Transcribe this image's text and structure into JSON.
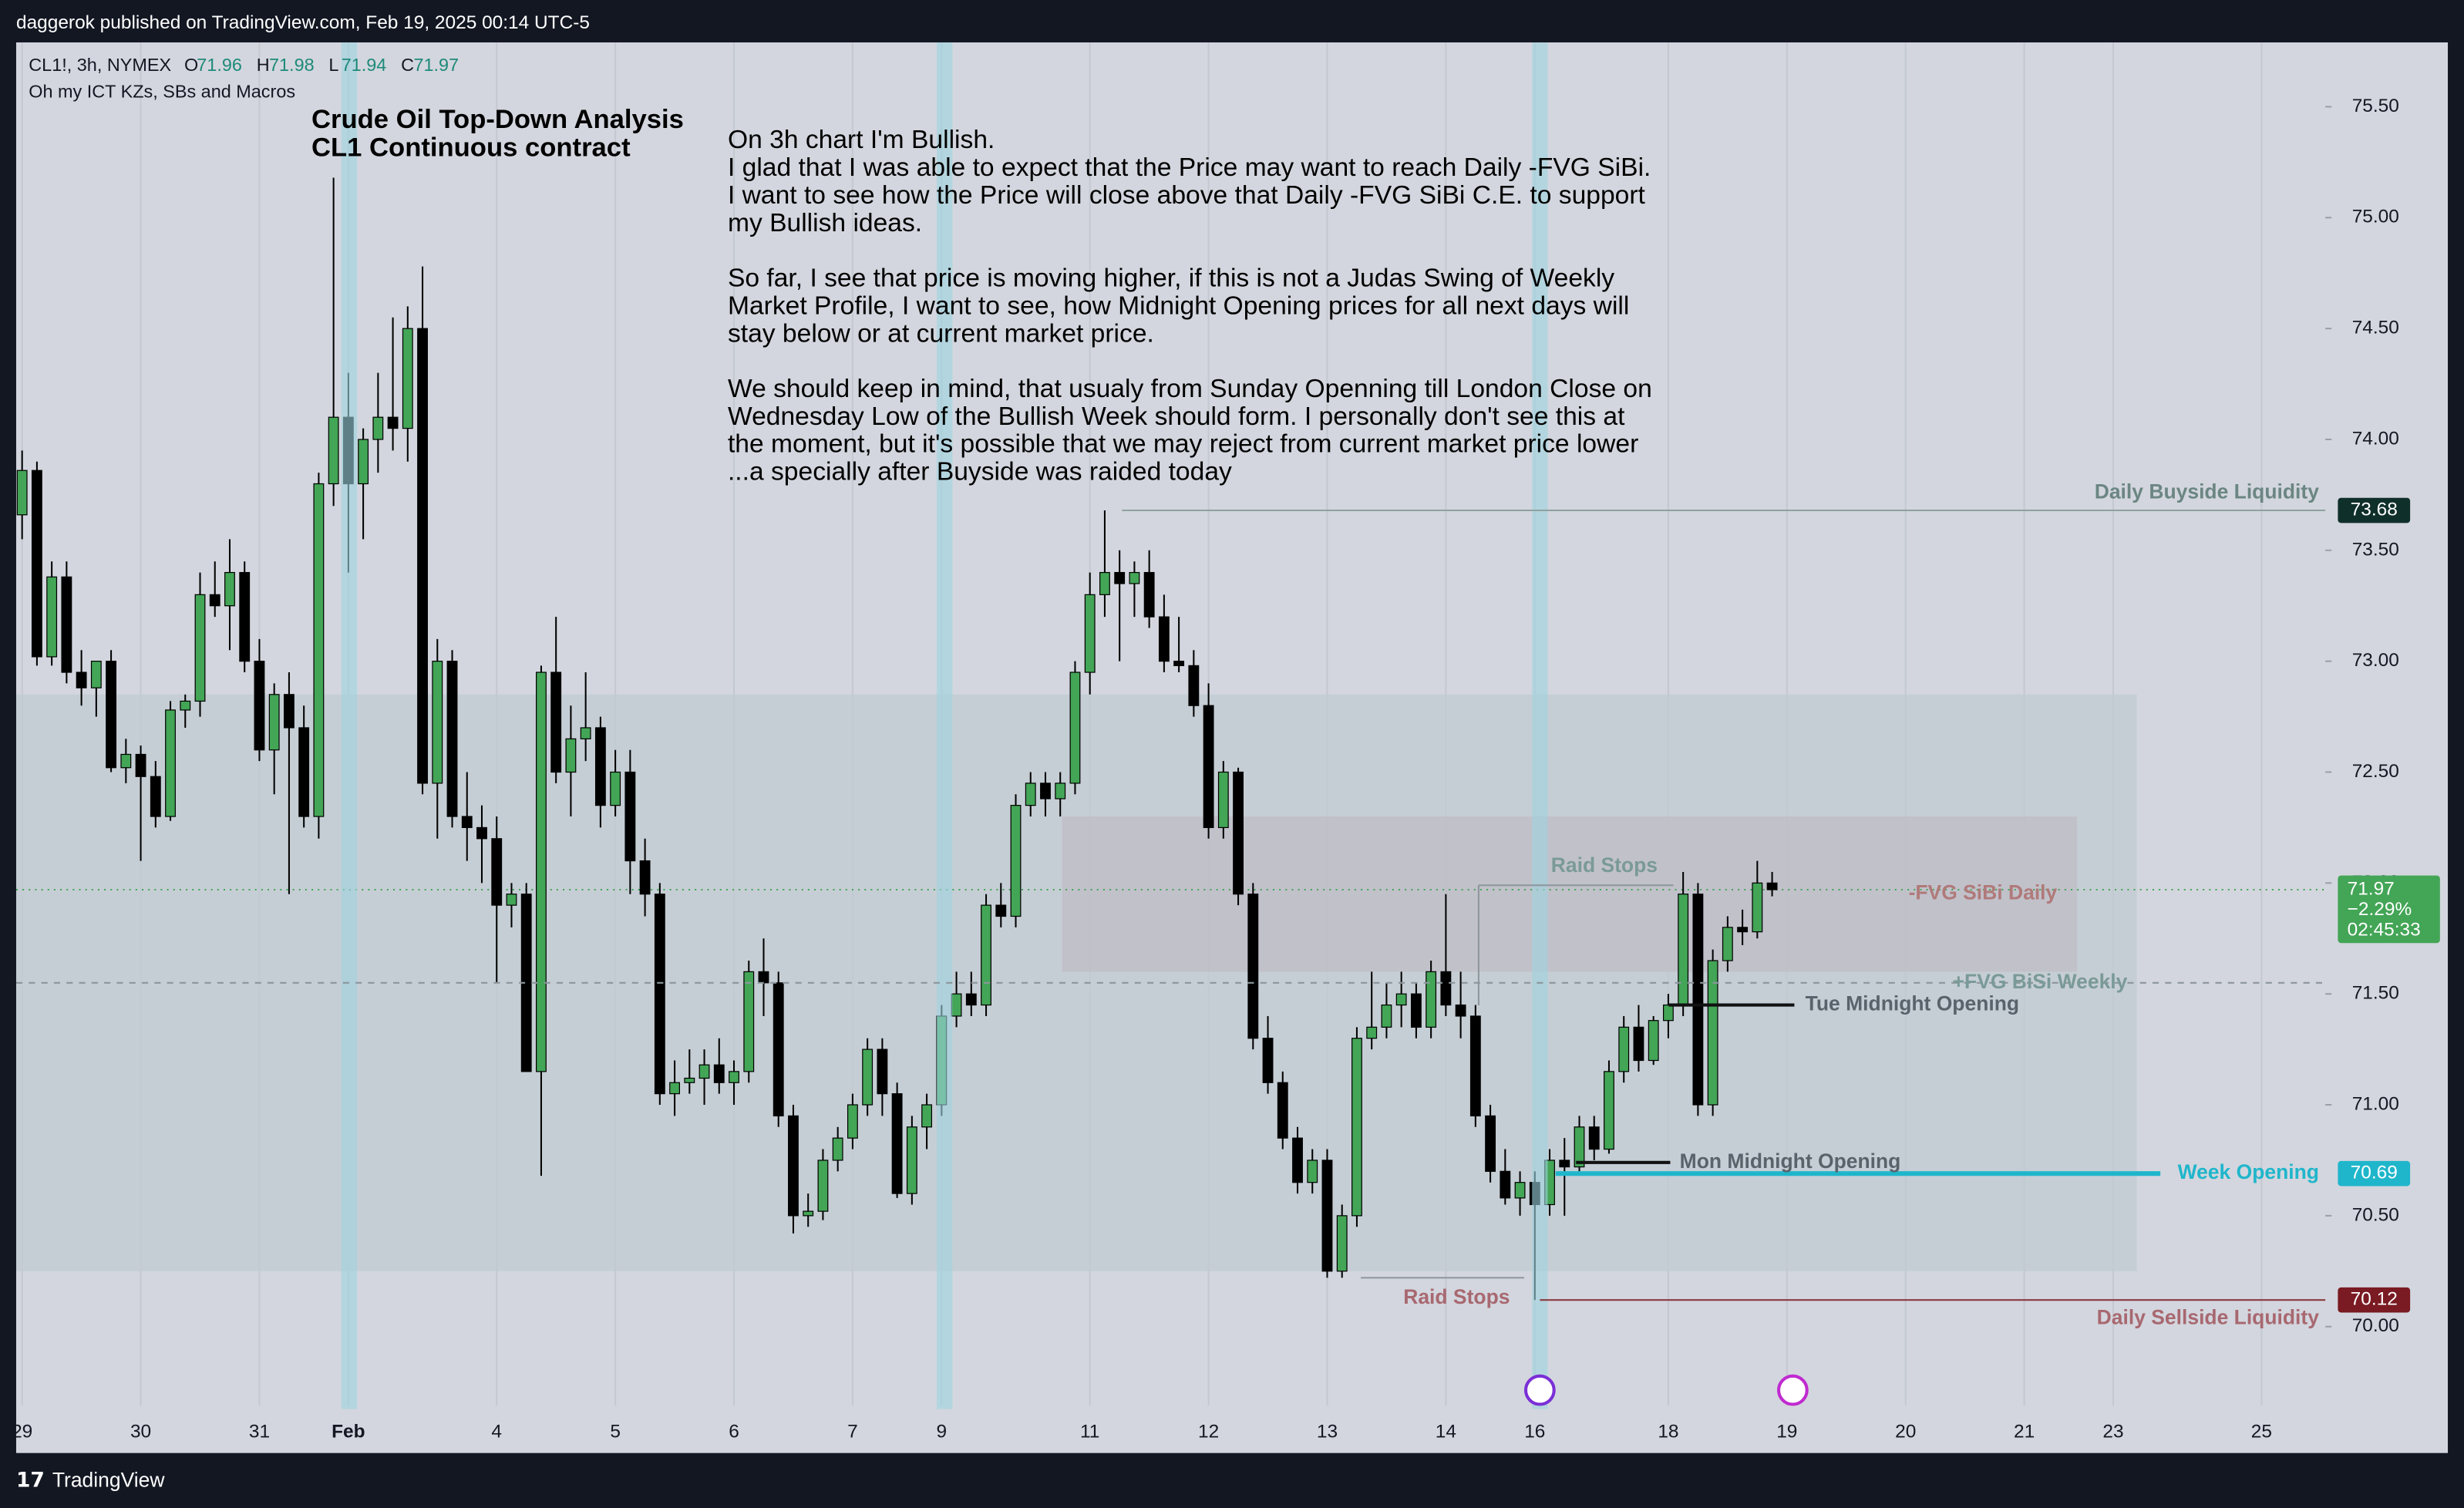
{
  "chart_data": {
    "type": "candlestick",
    "publisher": "daggerok published on TradingView.com, Feb 19, 2025 00:14 UTC-5",
    "symbol": "CL1!, 3h, NYMEX",
    "legend_labels": [
      "O",
      "H",
      "L",
      "C"
    ],
    "legend_values": [
      71.96,
      71.98,
      71.94,
      71.97
    ],
    "indicator": "Oh my ICT KZs, SBs and Macros",
    "title": [
      "Crude Oil Top-Down Analysis",
      "CL1 Continuous contract"
    ],
    "notes": [
      [
        "On 3h chart I'm Bullish.",
        "I glad that I was able to expect that the Price may want to reach Daily -FVG SiBi.",
        "I want to see how the Price will close above that Daily -FVG SiBi C.E. to support",
        "my Bullish ideas."
      ],
      [
        "So far, I see that price is moving higher, if this is not a Judas Swing of Weekly",
        "Market Profile, I want to see, how Midnight Opening prices for all next days will",
        "stay below or at current market price."
      ],
      [
        "We should keep in mind, that usualy from Sunday Openning till London Close on",
        "Wednesday Low of the Bullish Week should form. I personally don't see this at",
        "the moment, but it's possible that we may reject from current market price lower",
        "...a specially after Buyside was raided today"
      ]
    ],
    "footer": "TradingView",
    "up_color": "#43a556",
    "down_color": "#000000",
    "xlim": [
      -0.4,
      155.3
    ],
    "ylim": [
      69.43,
      75.79
    ],
    "xticks": [
      {
        "value": 0,
        "label": "29"
      },
      {
        "value": 8,
        "label": "30"
      },
      {
        "value": 16,
        "label": "31"
      },
      {
        "value": 22,
        "label": "Feb"
      },
      {
        "value": 32,
        "label": "4"
      },
      {
        "value": 40,
        "label": "5"
      },
      {
        "value": 48,
        "label": "6"
      },
      {
        "value": 56,
        "label": "7"
      },
      {
        "value": 62,
        "label": "9"
      },
      {
        "value": 72,
        "label": "11"
      },
      {
        "value": 80,
        "label": "12"
      },
      {
        "value": 88,
        "label": "13"
      },
      {
        "value": 96,
        "label": "14"
      },
      {
        "value": 102,
        "label": "16"
      },
      {
        "value": 111,
        "label": "18"
      },
      {
        "value": 119,
        "label": "19"
      },
      {
        "value": 127,
        "label": "20"
      },
      {
        "value": 135,
        "label": "21"
      },
      {
        "value": 141,
        "label": "23"
      },
      {
        "value": 151,
        "label": "25"
      }
    ],
    "yticks": [
      {
        "value": 70,
        "label": "70.00"
      },
      {
        "value": 70.5,
        "label": "70.50"
      },
      {
        "value": 71,
        "label": "71.00"
      },
      {
        "value": 71.5,
        "label": "71.50"
      },
      {
        "value": 72,
        "label": "72.00"
      },
      {
        "value": 72.5,
        "label": "72.50"
      },
      {
        "value": 73,
        "label": "73.00"
      },
      {
        "value": 73.5,
        "label": "73.50"
      },
      {
        "value": 74,
        "label": "74.00"
      },
      {
        "value": 74.5,
        "label": "74.50"
      },
      {
        "value": 75,
        "label": "75.00"
      },
      {
        "value": 75.5,
        "label": "75.50"
      }
    ],
    "ohlc": [
      [
        73.66,
        73.95,
        73.55,
        73.86
      ],
      [
        73.86,
        73.9,
        72.98,
        73.02
      ],
      [
        73.02,
        73.45,
        72.98,
        73.38
      ],
      [
        73.38,
        73.45,
        72.9,
        72.95
      ],
      [
        72.95,
        73.05,
        72.8,
        72.88
      ],
      [
        72.88,
        73.0,
        72.75,
        73.0
      ],
      [
        73.0,
        73.05,
        72.5,
        72.52
      ],
      [
        72.52,
        72.65,
        72.45,
        72.58
      ],
      [
        72.58,
        72.62,
        72.1,
        72.48
      ],
      [
        72.48,
        72.55,
        72.25,
        72.3
      ],
      [
        72.3,
        72.82,
        72.28,
        72.78
      ],
      [
        72.78,
        72.85,
        72.7,
        72.82
      ],
      [
        72.82,
        73.4,
        72.75,
        73.3
      ],
      [
        73.3,
        73.45,
        73.2,
        73.25
      ],
      [
        73.25,
        73.55,
        73.05,
        73.4
      ],
      [
        73.4,
        73.45,
        72.95,
        73.0
      ],
      [
        73.0,
        73.1,
        72.55,
        72.6
      ],
      [
        72.6,
        72.9,
        72.4,
        72.85
      ],
      [
        72.85,
        72.95,
        71.95,
        72.7
      ],
      [
        72.7,
        72.8,
        72.25,
        72.3
      ],
      [
        72.3,
        73.85,
        72.2,
        73.8
      ],
      [
        73.8,
        75.18,
        73.7,
        74.1
      ],
      [
        74.1,
        74.3,
        73.4,
        73.8
      ],
      [
        73.8,
        74.05,
        73.55,
        74.0
      ],
      [
        74.0,
        74.3,
        73.85,
        74.1
      ],
      [
        74.1,
        74.55,
        73.95,
        74.05
      ],
      [
        74.05,
        74.6,
        73.9,
        74.5
      ],
      [
        74.5,
        74.78,
        72.4,
        72.45
      ],
      [
        72.45,
        73.1,
        72.2,
        73.0
      ],
      [
        73.0,
        73.05,
        72.25,
        72.3
      ],
      [
        72.3,
        72.5,
        72.1,
        72.25
      ],
      [
        72.25,
        72.35,
        72.0,
        72.2
      ],
      [
        72.2,
        72.3,
        71.55,
        71.9
      ],
      [
        71.9,
        72.0,
        71.8,
        71.95
      ],
      [
        71.95,
        72.0,
        71.15,
        71.15
      ],
      [
        71.15,
        72.98,
        70.68,
        72.95
      ],
      [
        72.95,
        73.2,
        72.45,
        72.5
      ],
      [
        72.5,
        72.8,
        72.3,
        72.65
      ],
      [
        72.65,
        72.95,
        72.55,
        72.7
      ],
      [
        72.7,
        72.75,
        72.25,
        72.35
      ],
      [
        72.35,
        72.6,
        72.3,
        72.5
      ],
      [
        72.5,
        72.6,
        71.95,
        72.1
      ],
      [
        72.1,
        72.2,
        71.85,
        71.95
      ],
      [
        71.95,
        72.0,
        71.0,
        71.05
      ],
      [
        71.05,
        71.2,
        70.95,
        71.1
      ],
      [
        71.1,
        71.25,
        71.05,
        71.12
      ],
      [
        71.12,
        71.25,
        71.0,
        71.18
      ],
      [
        71.18,
        71.3,
        71.05,
        71.1
      ],
      [
        71.1,
        71.2,
        71.0,
        71.15
      ],
      [
        71.15,
        71.65,
        71.1,
        71.6
      ],
      [
        71.6,
        71.75,
        71.4,
        71.55
      ],
      [
        71.55,
        71.6,
        70.9,
        70.95
      ],
      [
        70.95,
        71.0,
        70.42,
        70.5
      ],
      [
        70.5,
        70.6,
        70.45,
        70.52
      ],
      [
        70.52,
        70.8,
        70.48,
        70.75
      ],
      [
        70.75,
        70.9,
        70.7,
        70.85
      ],
      [
        70.85,
        71.05,
        70.8,
        71.0
      ],
      [
        71.0,
        71.3,
        70.95,
        71.25
      ],
      [
        71.25,
        71.3,
        70.95,
        71.05
      ],
      [
        71.05,
        71.1,
        70.58,
        70.6
      ],
      [
        70.6,
        70.95,
        70.55,
        70.9
      ],
      [
        70.9,
        71.05,
        70.8,
        71.0
      ],
      [
        71.0,
        71.45,
        70.95,
        71.4
      ],
      [
        71.4,
        71.6,
        71.35,
        71.5
      ],
      [
        71.5,
        71.6,
        71.4,
        71.45
      ],
      [
        71.45,
        71.95,
        71.4,
        71.9
      ],
      [
        71.9,
        72.0,
        71.8,
        71.85
      ],
      [
        71.85,
        72.4,
        71.8,
        72.35
      ],
      [
        72.35,
        72.5,
        72.3,
        72.45
      ],
      [
        72.45,
        72.5,
        72.3,
        72.38
      ],
      [
        72.38,
        72.5,
        72.3,
        72.45
      ],
      [
        72.45,
        73.0,
        72.4,
        72.95
      ],
      [
        72.95,
        73.4,
        72.85,
        73.3
      ],
      [
        73.3,
        73.68,
        73.2,
        73.4
      ],
      [
        73.4,
        73.5,
        73.0,
        73.35
      ],
      [
        73.35,
        73.45,
        73.2,
        73.4
      ],
      [
        73.4,
        73.5,
        73.15,
        73.2
      ],
      [
        73.2,
        73.3,
        72.95,
        73.0
      ],
      [
        73.0,
        73.2,
        72.95,
        72.98
      ],
      [
        72.98,
        73.05,
        72.75,
        72.8
      ],
      [
        72.8,
        72.9,
        72.2,
        72.25
      ],
      [
        72.25,
        72.55,
        72.2,
        72.5
      ],
      [
        72.5,
        72.52,
        71.9,
        71.95
      ],
      [
        71.95,
        72.0,
        71.25,
        71.3
      ],
      [
        71.3,
        71.4,
        71.05,
        71.1
      ],
      [
        71.1,
        71.15,
        70.8,
        70.85
      ],
      [
        70.85,
        70.9,
        70.6,
        70.65
      ],
      [
        70.65,
        70.8,
        70.6,
        70.75
      ],
      [
        70.75,
        70.8,
        70.22,
        70.25
      ],
      [
        70.25,
        70.55,
        70.22,
        70.5
      ],
      [
        70.5,
        71.35,
        70.45,
        71.3
      ],
      [
        71.3,
        71.6,
        71.25,
        71.35
      ],
      [
        71.35,
        71.55,
        71.3,
        71.45
      ],
      [
        71.45,
        71.6,
        71.35,
        71.5
      ],
      [
        71.5,
        71.55,
        71.3,
        71.35
      ],
      [
        71.35,
        71.65,
        71.3,
        71.6
      ],
      [
        71.6,
        71.95,
        71.4,
        71.45
      ],
      [
        71.45,
        71.6,
        71.3,
        71.4
      ],
      [
        71.4,
        71.45,
        70.9,
        70.95
      ],
      [
        70.95,
        71.0,
        70.65,
        70.7
      ],
      [
        70.7,
        70.8,
        70.55,
        70.58
      ],
      [
        70.58,
        70.7,
        70.5,
        70.65
      ],
      [
        70.65,
        70.7,
        70.12,
        70.55
      ],
      [
        70.55,
        70.8,
        70.5,
        70.75
      ],
      [
        70.75,
        70.85,
        70.5,
        70.72
      ],
      [
        70.72,
        70.95,
        70.7,
        70.9
      ],
      [
        70.9,
        70.95,
        70.75,
        70.8
      ],
      [
        70.8,
        71.2,
        70.78,
        71.15
      ],
      [
        71.15,
        71.4,
        71.1,
        71.35
      ],
      [
        71.35,
        71.45,
        71.15,
        71.2
      ],
      [
        71.2,
        71.4,
        71.18,
        71.38
      ],
      [
        71.38,
        71.5,
        71.3,
        71.45
      ],
      [
        71.45,
        72.05,
        71.4,
        71.95
      ],
      [
        71.95,
        72.0,
        70.95,
        71.0
      ],
      [
        71.0,
        71.7,
        70.95,
        71.65
      ],
      [
        71.65,
        71.85,
        71.6,
        71.8
      ],
      [
        71.8,
        71.88,
        71.72,
        71.78
      ],
      [
        71.78,
        72.1,
        71.75,
        72.0
      ],
      [
        72.0,
        72.05,
        71.94,
        71.97
      ]
    ],
    "zones": [
      {
        "top": 72.85,
        "bottom": 70.25,
        "color": "#c2cbd1"
      },
      {
        "label": "-FVG SiBi Daily",
        "top": 72.3,
        "bottom": 71.6,
        "color": "#bfbcc6",
        "label_color": "#b07a7a"
      }
    ],
    "levels": [
      {
        "label": "Daily Buyside Liquidity",
        "price": 73.68,
        "color": "#8ea2a0",
        "label_color": "#6b8683",
        "tag_color": "#0f2f2a"
      },
      {
        "label": "Week Opening",
        "price": 70.69,
        "color": "#1fb6cb",
        "label_color": "#1fb6cb",
        "tag_color": "#1fb6cb"
      },
      {
        "label": "Daily Sellside Liquidity",
        "price": 70.12,
        "color": "#8b3a40",
        "label_color": "#a86870",
        "tag_color": "#7a1a22"
      },
      {
        "label": "Tue Midnight Opening",
        "price": 71.45,
        "color": "#111111",
        "label_color": "#5a626b"
      },
      {
        "label": "Mon Midnight Opening",
        "price": 70.74,
        "color": "#111111",
        "label_color": "#5a626b"
      },
      {
        "label": "+FVG BiSi  Weekly",
        "price": 71.55,
        "color": "#8c969c",
        "label_color": "#7a9a98"
      }
    ],
    "raids": [
      {
        "label": "Raid Stops",
        "price": 71.99
      },
      {
        "label": "Raid Stops",
        "price": 70.22
      }
    ],
    "last_price": {
      "price": 71.97,
      "change": {
        "value": -2.29,
        "label": "−2.29%"
      },
      "countdown": "02:45:33",
      "color": "#43a556"
    }
  }
}
